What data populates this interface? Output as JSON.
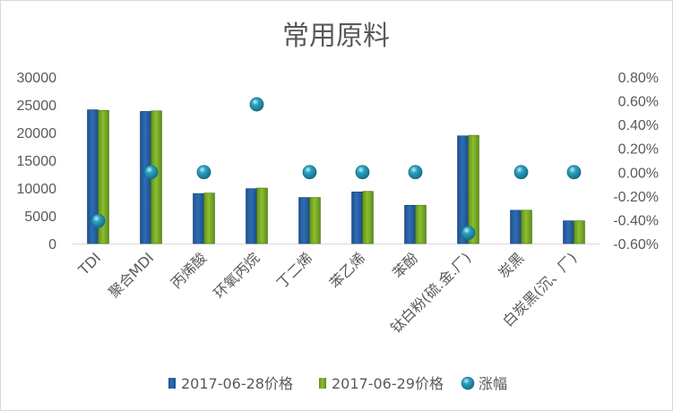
{
  "chart_data": {
    "type": "bar",
    "title": "常用原料",
    "categories": [
      "TDI",
      "聚合MDI",
      "丙烯酸",
      "环氧丙烷",
      "丁二烯",
      "苯乙烯",
      "苯酚",
      "钛白粉(硫.金.厂)",
      "炭黑",
      "白炭黑(沉、厂)"
    ],
    "series": [
      {
        "name": "2017-06-28价格",
        "kind": "bar",
        "axis": "left",
        "color": "#2e6db4",
        "values": [
          24100,
          23800,
          9000,
          9900,
          8300,
          9300,
          6900,
          19400,
          6000,
          4100
        ]
      },
      {
        "name": "2017-06-29价格",
        "kind": "bar",
        "axis": "left",
        "color": "#8cbf2e",
        "values": [
          24000,
          23900,
          9100,
          10000,
          8300,
          9400,
          6900,
          19500,
          6000,
          4100
        ]
      },
      {
        "name": "涨幅",
        "kind": "marker",
        "axis": "right",
        "color": "#2aa3c4",
        "values": [
          -0.41,
          0.0,
          0.0,
          0.57,
          0.0,
          0.0,
          0.0,
          -0.51,
          0.0,
          0.0
        ]
      }
    ],
    "y_left": {
      "min": 0,
      "max": 30000,
      "ticks": [
        0,
        5000,
        10000,
        15000,
        20000,
        25000,
        30000
      ]
    },
    "y_right": {
      "min": -0.6,
      "max": 0.8,
      "ticks": [
        "0.80%",
        "0.60%",
        "0.40%",
        "0.20%",
        "0.00%",
        "-0.20%",
        "-0.40%",
        "-0.60%"
      ]
    },
    "grid": false,
    "legend_position": "bottom"
  }
}
